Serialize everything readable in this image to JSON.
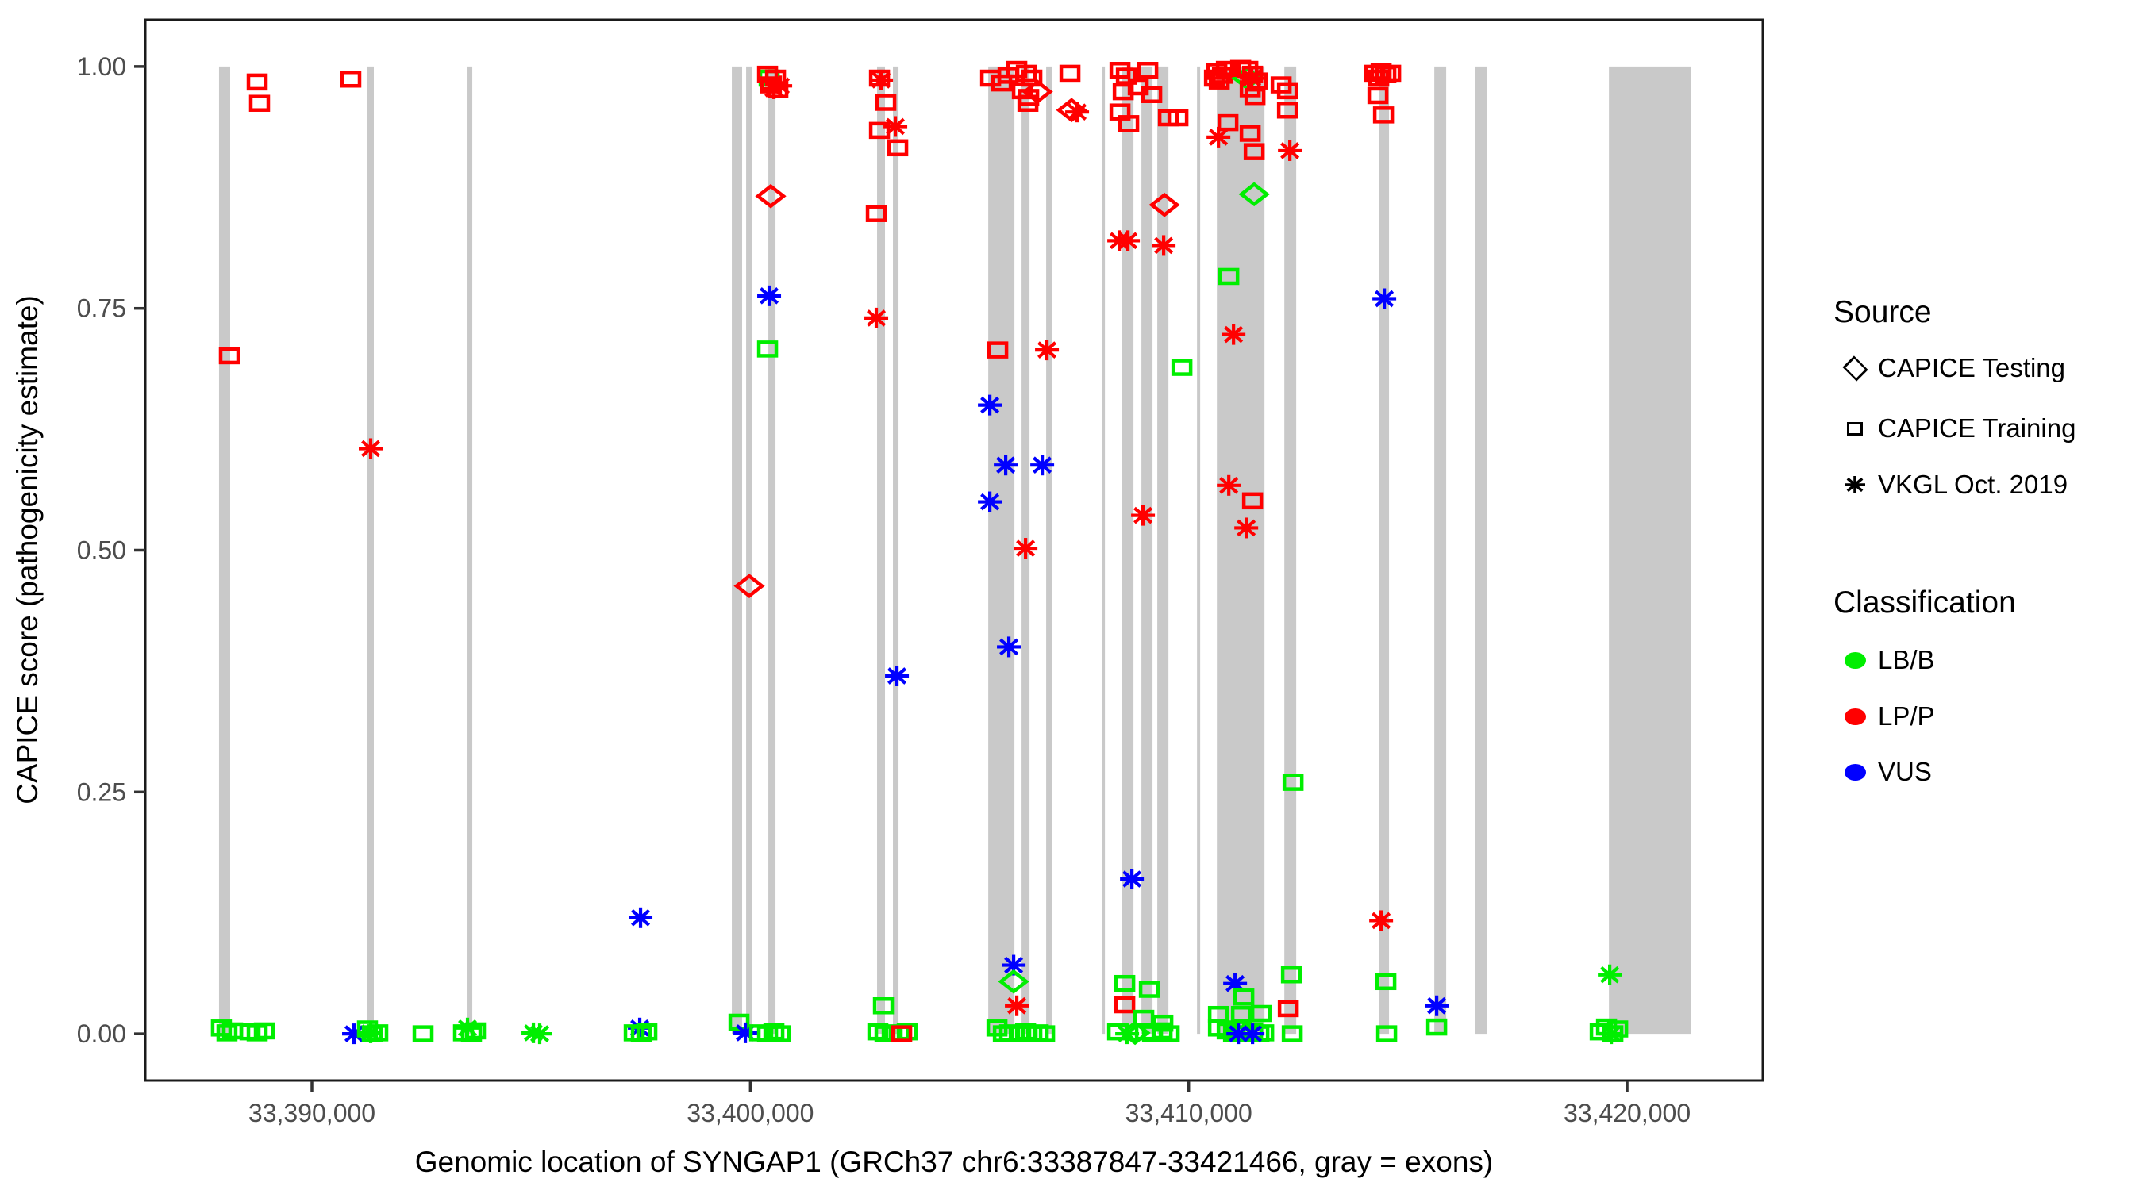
{
  "figure": {
    "kind": "ggplot-style scatter plot",
    "background": "#FFFFFF",
    "panel_border_color": "#1A1A1A",
    "exon_color": "#C9C9C9",
    "tick_label_color": "#4D4D4D"
  },
  "x_axis": {
    "title": "Genomic location of SYNGAP1 (GRCh37 chr6:33387847-33421466, gray = exons)",
    "domain": [
      33386198,
      33423095
    ],
    "ticks": [
      {
        "value": 33390000,
        "label": "33,390,000"
      },
      {
        "value": 33400000,
        "label": "33,400,000"
      },
      {
        "value": 33410000,
        "label": "33,410,000"
      },
      {
        "value": 33420000,
        "label": "33,420,000"
      }
    ]
  },
  "y_axis": {
    "title": "CAPICE score (pathogenicity estimate)",
    "domain": [
      -0.0483,
      1.0483
    ],
    "ticks": [
      {
        "value": 0.0,
        "label": "0.00"
      },
      {
        "value": 0.25,
        "label": "0.25"
      },
      {
        "value": 0.5,
        "label": "0.50"
      },
      {
        "value": 0.75,
        "label": "0.75"
      },
      {
        "value": 1.0,
        "label": "1.00"
      }
    ]
  },
  "legend": {
    "source": {
      "title": "Source",
      "items": [
        {
          "label": "CAPICE Testing",
          "shape": "diamond"
        },
        {
          "label": "CAPICE Training",
          "shape": "square"
        },
        {
          "label": "VKGL Oct. 2019",
          "shape": "asterisk"
        }
      ]
    },
    "classification": {
      "title": "Classification",
      "items": [
        {
          "label": "LB/B",
          "color": "#00EE00"
        },
        {
          "label": "LP/P",
          "color": "#FF0000"
        },
        {
          "label": "VUS",
          "color": "#0000FF"
        }
      ]
    }
  },
  "chart_data": {
    "type": "scatter",
    "title": "",
    "xlabel": "Genomic location of SYNGAP1 (GRCh37 chr6:33387847-33421466, gray = exons)",
    "ylabel": "CAPICE score (pathogenicity estimate)",
    "xlim": [
      33386198,
      33423095
    ],
    "ylim": [
      -0.0483,
      1.0483
    ],
    "grid": false,
    "legend_position": "right",
    "shape_key": {
      "s": "CAPICE Training",
      "d": "CAPICE Testing",
      "a": "VKGL Oct. 2019"
    },
    "class_key": {
      "g": "LB/B",
      "r": "LP/P",
      "b": "VUS"
    },
    "class_colors": {
      "g": "#00EE00",
      "r": "#FF0000",
      "b": "#0000FF"
    },
    "exons": [
      [
        33387881,
        33388135
      ],
      [
        33391267,
        33391412
      ],
      [
        33393549,
        33393658
      ],
      [
        33399578,
        33399813
      ],
      [
        33399904,
        33400031
      ],
      [
        33400411,
        33400574
      ],
      [
        33402891,
        33403072
      ],
      [
        33403253,
        33403380
      ],
      [
        33405427,
        33406024
      ],
      [
        33406187,
        33406368
      ],
      [
        33406748,
        33406875
      ],
      [
        33408016,
        33408088
      ],
      [
        33408468,
        33408740
      ],
      [
        33408921,
        33409174
      ],
      [
        33409283,
        33409537
      ],
      [
        33410189,
        33410261
      ],
      [
        33410642,
        33411728
      ],
      [
        33412181,
        33412452
      ],
      [
        33414334,
        33414569
      ],
      [
        33415602,
        33415873
      ],
      [
        33416525,
        33416797
      ],
      [
        33419585,
        33421450
      ]
    ],
    "points": [
      [
        33388117,
        0.701,
        "s",
        "r"
      ],
      [
        33388751,
        0.984,
        "s",
        "r"
      ],
      [
        33388805,
        0.962,
        "s",
        "r"
      ],
      [
        33390887,
        0.987,
        "s",
        "r"
      ],
      [
        33391340,
        0.605,
        "a",
        "r"
      ],
      [
        33399976,
        0.463,
        "d",
        "r"
      ],
      [
        33397496,
        0.12,
        "a",
        "b"
      ],
      [
        33387935,
        0.006,
        "s",
        "g"
      ],
      [
        33388062,
        0.001,
        "s",
        "g"
      ],
      [
        33388190,
        0.003,
        "s",
        "g"
      ],
      [
        33388588,
        0.002,
        "s",
        "g"
      ],
      [
        33388751,
        0.001,
        "s",
        "g"
      ],
      [
        33388914,
        0.003,
        "s",
        "g"
      ],
      [
        33390960,
        0.0,
        "a",
        "b"
      ],
      [
        33391267,
        0.005,
        "s",
        "g"
      ],
      [
        33391376,
        0.0,
        "s",
        "g"
      ],
      [
        33391340,
        0.001,
        "a",
        "g"
      ],
      [
        33391503,
        0.001,
        "s",
        "g"
      ],
      [
        33392535,
        0.0,
        "s",
        "g"
      ],
      [
        33393549,
        0.006,
        "a",
        "g"
      ],
      [
        33393458,
        0.001,
        "s",
        "g"
      ],
      [
        33393639,
        0.0,
        "s",
        "g"
      ],
      [
        33393730,
        0.003,
        "s",
        "g"
      ],
      [
        33395052,
        0.001,
        "a",
        "g"
      ],
      [
        33395196,
        0.0,
        "a",
        "g"
      ],
      [
        33397478,
        0.006,
        "a",
        "b"
      ],
      [
        33397351,
        0.001,
        "s",
        "g"
      ],
      [
        33397514,
        0.0,
        "s",
        "g"
      ],
      [
        33397641,
        0.002,
        "s",
        "g"
      ],
      [
        33399741,
        0.012,
        "s",
        "g"
      ],
      [
        33399886,
        0.001,
        "a",
        "b"
      ],
      [
        33400429,
        0.988,
        "s",
        "g"
      ],
      [
        33400393,
        0.992,
        "s",
        "r"
      ],
      [
        33400574,
        0.988,
        "s",
        "r"
      ],
      [
        33400465,
        0.981,
        "s",
        "r"
      ],
      [
        33400628,
        0.976,
        "s",
        "r"
      ],
      [
        33400538,
        0.977,
        "a",
        "r"
      ],
      [
        33400683,
        0.98,
        "a",
        "r"
      ],
      [
        33400465,
        0.866,
        "d",
        "r"
      ],
      [
        33400429,
        0.763,
        "a",
        "b"
      ],
      [
        33400393,
        0.708,
        "s",
        "g"
      ],
      [
        33400212,
        0.001,
        "s",
        "g"
      ],
      [
        33400393,
        0.0,
        "s",
        "g"
      ],
      [
        33400538,
        0.002,
        "s",
        "g"
      ],
      [
        33400683,
        0.0,
        "s",
        "g"
      ],
      [
        33402946,
        0.988,
        "s",
        "r"
      ],
      [
        33402982,
        0.986,
        "a",
        "r"
      ],
      [
        33403091,
        0.963,
        "s",
        "r"
      ],
      [
        33402946,
        0.934,
        "s",
        "r"
      ],
      [
        33403308,
        0.938,
        "a",
        "r"
      ],
      [
        33403362,
        0.916,
        "s",
        "r"
      ],
      [
        33402873,
        0.848,
        "s",
        "r"
      ],
      [
        33402873,
        0.74,
        "a",
        "r"
      ],
      [
        33403344,
        0.37,
        "a",
        "b"
      ],
      [
        33403036,
        0.029,
        "s",
        "g"
      ],
      [
        33402909,
        0.002,
        "s",
        "g"
      ],
      [
        33403072,
        0.0,
        "s",
        "g"
      ],
      [
        33403235,
        0.001,
        "s",
        "g"
      ],
      [
        33403398,
        0.0,
        "s",
        "g"
      ],
      [
        33403579,
        0.002,
        "s",
        "g"
      ],
      [
        33403453,
        0.0,
        "s",
        "r"
      ],
      [
        33405481,
        0.988,
        "s",
        "r"
      ],
      [
        33405734,
        0.983,
        "s",
        "r"
      ],
      [
        33405879,
        0.991,
        "s",
        "r"
      ],
      [
        33406078,
        0.997,
        "s",
        "r"
      ],
      [
        33406296,
        0.993,
        "s",
        "r"
      ],
      [
        33406422,
        0.988,
        "s",
        "r"
      ],
      [
        33406205,
        0.975,
        "s",
        "r"
      ],
      [
        33406350,
        0.968,
        "s",
        "r"
      ],
      [
        33406549,
        0.974,
        "d",
        "r"
      ],
      [
        33406332,
        0.962,
        "s",
        "r"
      ],
      [
        33405644,
        0.707,
        "s",
        "r"
      ],
      [
        33406766,
        0.707,
        "a",
        "r"
      ],
      [
        33405463,
        0.65,
        "a",
        "b"
      ],
      [
        33405825,
        0.588,
        "a",
        "b"
      ],
      [
        33406658,
        0.588,
        "a",
        "b"
      ],
      [
        33405463,
        0.55,
        "a",
        "b"
      ],
      [
        33406278,
        0.502,
        "a",
        "r"
      ],
      [
        33405897,
        0.4,
        "a",
        "b"
      ],
      [
        33406006,
        0.071,
        "a",
        "b"
      ],
      [
        33406006,
        0.054,
        "d",
        "g"
      ],
      [
        33406078,
        0.029,
        "a",
        "r"
      ],
      [
        33405626,
        0.006,
        "s",
        "g"
      ],
      [
        33405771,
        0.0,
        "s",
        "g"
      ],
      [
        33405915,
        0.001,
        "s",
        "g"
      ],
      [
        33406133,
        0.0,
        "s",
        "g"
      ],
      [
        33406278,
        0.002,
        "s",
        "g"
      ],
      [
        33406422,
        0.0,
        "s",
        "g"
      ],
      [
        33406567,
        0.001,
        "s",
        "g"
      ],
      [
        33406712,
        0.0,
        "s",
        "g"
      ],
      [
        33407291,
        0.993,
        "s",
        "r"
      ],
      [
        33407328,
        0.955,
        "d",
        "r"
      ],
      [
        33407454,
        0.953,
        "a",
        "r"
      ],
      [
        33408432,
        0.996,
        "s",
        "r"
      ],
      [
        33408577,
        0.99,
        "s",
        "r"
      ],
      [
        33408505,
        0.974,
        "s",
        "r"
      ],
      [
        33408432,
        0.953,
        "s",
        "r"
      ],
      [
        33408631,
        0.941,
        "s",
        "r"
      ],
      [
        33408848,
        0.979,
        "s",
        "r"
      ],
      [
        33409066,
        0.996,
        "s",
        "r"
      ],
      [
        33409156,
        0.971,
        "s",
        "r"
      ],
      [
        33409537,
        0.947,
        "s",
        "r"
      ],
      [
        33409754,
        0.947,
        "s",
        "r"
      ],
      [
        33409446,
        0.857,
        "d",
        "r"
      ],
      [
        33408414,
        0.82,
        "a",
        "r"
      ],
      [
        33408613,
        0.82,
        "a",
        "r"
      ],
      [
        33409428,
        0.815,
        "a",
        "r"
      ],
      [
        33408957,
        0.536,
        "a",
        "r"
      ],
      [
        33408704,
        0.16,
        "a",
        "b"
      ],
      [
        33408541,
        0.052,
        "s",
        "g"
      ],
      [
        33408541,
        0.03,
        "s",
        "r"
      ],
      [
        33409102,
        0.046,
        "s",
        "g"
      ],
      [
        33408975,
        0.016,
        "s",
        "g"
      ],
      [
        33409410,
        0.011,
        "s",
        "g"
      ],
      [
        33408378,
        0.002,
        "s",
        "g"
      ],
      [
        33408595,
        0.0,
        "a",
        "g"
      ],
      [
        33408776,
        0.001,
        "d",
        "g"
      ],
      [
        33409011,
        0.002,
        "s",
        "g"
      ],
      [
        33409174,
        0.0,
        "s",
        "g"
      ],
      [
        33409392,
        0.003,
        "s",
        "g"
      ],
      [
        33409555,
        0.0,
        "s",
        "g"
      ],
      [
        33410642,
        0.995,
        "s",
        "r"
      ],
      [
        33410769,
        0.991,
        "s",
        "r"
      ],
      [
        33410696,
        0.985,
        "s",
        "r"
      ],
      [
        33410859,
        0.997,
        "s",
        "r"
      ],
      [
        33410587,
        0.988,
        "s",
        "r"
      ],
      [
        33411330,
        0.988,
        "d",
        "g"
      ],
      [
        33411185,
        0.998,
        "s",
        "r"
      ],
      [
        33411348,
        0.997,
        "s",
        "r"
      ],
      [
        33411456,
        0.992,
        "s",
        "r"
      ],
      [
        33411565,
        0.985,
        "s",
        "r"
      ],
      [
        33411402,
        0.977,
        "s",
        "r"
      ],
      [
        33411511,
        0.969,
        "s",
        "r"
      ],
      [
        33411438,
        0.988,
        "a",
        "r"
      ],
      [
        33412108,
        0.981,
        "s",
        "r"
      ],
      [
        33412253,
        0.975,
        "s",
        "r"
      ],
      [
        33412253,
        0.955,
        "s",
        "r"
      ],
      [
        33410678,
        0.927,
        "a",
        "r"
      ],
      [
        33412307,
        0.913,
        "a",
        "r"
      ],
      [
        33410895,
        0.942,
        "s",
        "r"
      ],
      [
        33411402,
        0.931,
        "s",
        "r"
      ],
      [
        33411493,
        0.912,
        "s",
        "r"
      ],
      [
        33411493,
        0.868,
        "d",
        "g"
      ],
      [
        33410914,
        0.783,
        "s",
        "g"
      ],
      [
        33409845,
        0.689,
        "s",
        "g"
      ],
      [
        33411022,
        0.723,
        "a",
        "r"
      ],
      [
        33410914,
        0.567,
        "a",
        "r"
      ],
      [
        33411456,
        0.551,
        "s",
        "r"
      ],
      [
        33411312,
        0.523,
        "a",
        "r"
      ],
      [
        33411058,
        0.052,
        "a",
        "b"
      ],
      [
        33411257,
        0.038,
        "s",
        "g"
      ],
      [
        33410678,
        0.02,
        "s",
        "g"
      ],
      [
        33410678,
        0.006,
        "s",
        "g"
      ],
      [
        33411203,
        0.02,
        "s",
        "g"
      ],
      [
        33411656,
        0.021,
        "s",
        "g"
      ],
      [
        33410877,
        0.003,
        "s",
        "g"
      ],
      [
        33411022,
        0.0,
        "s",
        "g"
      ],
      [
        33411167,
        0.005,
        "s",
        "g"
      ],
      [
        33411312,
        0.0,
        "s",
        "g"
      ],
      [
        33411456,
        0.003,
        "s",
        "g"
      ],
      [
        33411601,
        0.0,
        "s",
        "g"
      ],
      [
        33411710,
        0.001,
        "s",
        "g"
      ],
      [
        33411131,
        0.0,
        "a",
        "b"
      ],
      [
        33411456,
        0.0,
        "a",
        "b"
      ],
      [
        33412380,
        0.26,
        "s",
        "g"
      ],
      [
        33412343,
        0.061,
        "s",
        "g"
      ],
      [
        33412271,
        0.026,
        "s",
        "r"
      ],
      [
        33412361,
        0.0,
        "s",
        "g"
      ],
      [
        33414244,
        0.993,
        "s",
        "r"
      ],
      [
        33414389,
        0.995,
        "s",
        "r"
      ],
      [
        33414497,
        0.992,
        "s",
        "r"
      ],
      [
        33414606,
        0.993,
        "s",
        "r"
      ],
      [
        33414334,
        0.988,
        "s",
        "r"
      ],
      [
        33414316,
        0.97,
        "s",
        "r"
      ],
      [
        33414443,
        0.95,
        "s",
        "r"
      ],
      [
        33414461,
        0.76,
        "a",
        "b"
      ],
      [
        33414389,
        0.117,
        "a",
        "r"
      ],
      [
        33414497,
        0.054,
        "s",
        "g"
      ],
      [
        33414515,
        0.0,
        "s",
        "g"
      ],
      [
        33415656,
        0.029,
        "a",
        "b"
      ],
      [
        33415656,
        0.007,
        "s",
        "g"
      ],
      [
        33419603,
        0.061,
        "a",
        "g"
      ],
      [
        33419385,
        0.002,
        "s",
        "g"
      ],
      [
        33419530,
        0.007,
        "s",
        "g"
      ],
      [
        33419675,
        0.0,
        "s",
        "g"
      ],
      [
        33419784,
        0.005,
        "s",
        "g"
      ],
      [
        33419639,
        0.0,
        "a",
        "g"
      ]
    ]
  }
}
